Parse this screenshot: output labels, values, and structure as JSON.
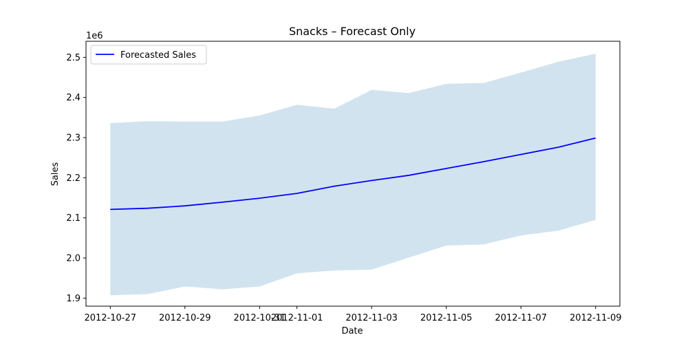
{
  "chart_data": {
    "type": "line",
    "title": "Snacks – Forecast Only",
    "xlabel": "Date",
    "ylabel": "Sales",
    "y_offset_text": "1e6",
    "x": [
      "2012-10-27",
      "2012-10-28",
      "2012-10-29",
      "2012-10-30",
      "2012-10-31",
      "2012-11-01",
      "2012-11-02",
      "2012-11-03",
      "2012-11-04",
      "2012-11-05",
      "2012-11-06",
      "2012-11-07",
      "2012-11-08",
      "2012-11-09"
    ],
    "x_ticks": [
      "2012-10-27",
      "2012-10-29",
      "2012-10-31",
      "2012-11-01",
      "2012-11-03",
      "2012-11-05",
      "2012-11-07",
      "2012-11-09"
    ],
    "x_tick_labels": [
      "2012-10-27",
      "2012-10-29",
      "2012-10-31",
      "2012-11-01",
      "2012-11-03",
      "2012-11-05",
      "2012-11-07",
      "2012-11-09"
    ],
    "xlim": [
      "2012-10-26",
      "2012-11-09"
    ],
    "y_ticks": [
      1.9,
      2.0,
      2.1,
      2.2,
      2.3,
      2.4,
      2.5
    ],
    "y_tick_labels": [
      "1.9",
      "2.0",
      "2.1",
      "2.2",
      "2.3",
      "2.4",
      "2.5"
    ],
    "ylim": [
      1.88,
      2.54
    ],
    "series": [
      {
        "name": "Forecasted Sales",
        "color": "#0000ff",
        "values": [
          2.121,
          2.124,
          2.13,
          2.139,
          2.149,
          2.161,
          2.179,
          2.193,
          2.206,
          2.223,
          2.24,
          2.258,
          2.276,
          2.299
        ],
        "lower": [
          1.907,
          1.91,
          1.929,
          1.922,
          1.929,
          1.962,
          1.969,
          1.971,
          2.001,
          2.031,
          2.034,
          2.056,
          2.068,
          2.095
        ],
        "upper": [
          2.336,
          2.341,
          2.34,
          2.34,
          2.355,
          2.382,
          2.372,
          2.419,
          2.411,
          2.434,
          2.436,
          2.462,
          2.489,
          2.509
        ],
        "band_color": "#d1e3ef"
      }
    ],
    "legend_position": "top-left",
    "grid": false
  }
}
